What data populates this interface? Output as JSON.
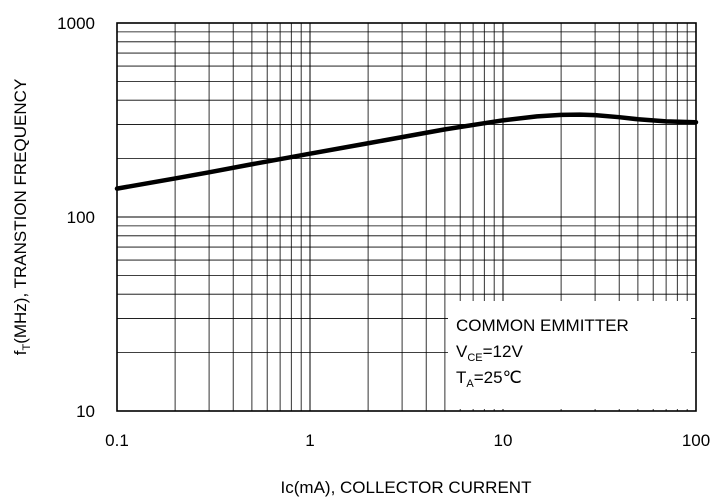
{
  "chart_data": {
    "type": "line",
    "title": "",
    "xlabel": "Ic(mA), COLLECTOR CURRENT",
    "ylabel": {
      "main": "f",
      "sub": "T",
      "rest": "(MHz),  TRANSTION FREQUENCY"
    },
    "x_scale": "log",
    "y_scale": "log",
    "xlim": [
      0.1,
      100
    ],
    "ylim": [
      10,
      1000
    ],
    "x_ticks": [
      "0.1",
      "1",
      "10",
      "100"
    ],
    "y_ticks": [
      "10",
      "100",
      "1000"
    ],
    "grid": true,
    "series": [
      {
        "x": [
          0.1,
          0.2,
          0.3,
          0.5,
          1,
          2,
          3,
          5,
          10,
          15,
          20,
          25,
          30,
          40,
          50,
          70,
          100
        ],
        "y": [
          140,
          158,
          170,
          187,
          212,
          240,
          258,
          283,
          315,
          330,
          336,
          337,
          335,
          327,
          319,
          311,
          308
        ]
      }
    ],
    "legend_box": {
      "position": "bottom-right",
      "line1": "COMMON EMMITTER",
      "line2": {
        "main": "V",
        "sub": "CE",
        "rest": "=12V"
      },
      "line3": {
        "main": "T",
        "sub": "A",
        "rest": "=25℃"
      }
    }
  }
}
